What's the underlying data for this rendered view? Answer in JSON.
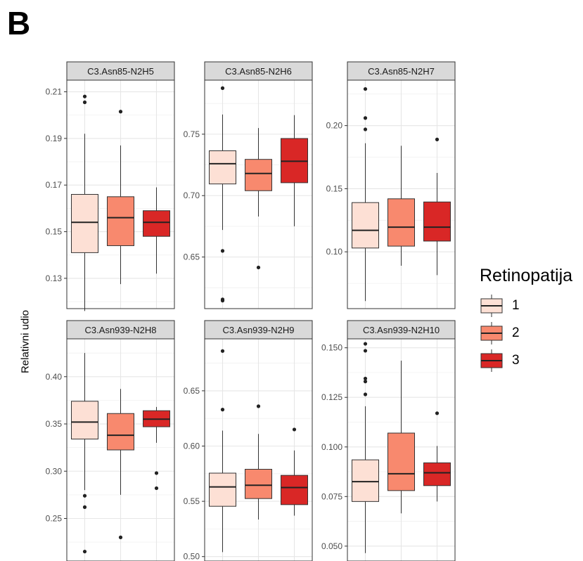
{
  "figure": {
    "panel_letter": "B",
    "ylabel": "Relativni udio",
    "legend_title": "Retinopatija",
    "groups": [
      "1",
      "2",
      "3"
    ],
    "colors": {
      "1": "#FDE0D5",
      "2": "#F8896E",
      "3": "#D92726"
    }
  },
  "chart_data": [
    {
      "type": "box",
      "title": "C3.Asn85-N2H5",
      "ylim": [
        0.117,
        0.215
      ],
      "yticks": [
        "0.13",
        "0.15",
        "0.17",
        "0.19",
        "0.21"
      ],
      "series": [
        {
          "name": "1",
          "q1": 0.141,
          "median": 0.154,
          "q3": 0.166,
          "whisker_low": 0.116,
          "whisker_high": 0.192,
          "outliers": [
            0.208,
            0.2055
          ]
        },
        {
          "name": "2",
          "q1": 0.144,
          "median": 0.156,
          "q3": 0.165,
          "whisker_low": 0.1275,
          "whisker_high": 0.187,
          "outliers": [
            0.2015
          ]
        },
        {
          "name": "3",
          "q1": 0.148,
          "median": 0.154,
          "q3": 0.159,
          "whisker_low": 0.132,
          "whisker_high": 0.169,
          "outliers": []
        }
      ]
    },
    {
      "type": "box",
      "title": "C3.Asn85-N2H6",
      "ylim": [
        0.608,
        0.794
      ],
      "yticks": [
        "0.65",
        "0.70",
        "0.75"
      ],
      "series": [
        {
          "name": "1",
          "q1": 0.7095,
          "median": 0.726,
          "q3": 0.7365,
          "whisker_low": 0.672,
          "whisker_high": 0.766,
          "outliers": [
            0.7875,
            0.655,
            0.6155,
            0.6145
          ]
        },
        {
          "name": "2",
          "q1": 0.704,
          "median": 0.718,
          "q3": 0.7295,
          "whisker_low": 0.683,
          "whisker_high": 0.755,
          "outliers": [
            0.6415
          ]
        },
        {
          "name": "3",
          "q1": 0.7105,
          "median": 0.728,
          "q3": 0.7465,
          "whisker_low": 0.675,
          "whisker_high": 0.7655,
          "outliers": []
        }
      ]
    },
    {
      "type": "box",
      "title": "C3.Asn85-N2H7",
      "ylim": [
        0.055,
        0.236
      ],
      "yticks": [
        "0.10",
        "0.15",
        "0.20"
      ],
      "series": [
        {
          "name": "1",
          "q1": 0.103,
          "median": 0.117,
          "q3": 0.139,
          "whisker_low": 0.061,
          "whisker_high": 0.186,
          "outliers": [
            0.229,
            0.206,
            0.197
          ]
        },
        {
          "name": "2",
          "q1": 0.1045,
          "median": 0.1195,
          "q3": 0.142,
          "whisker_low": 0.089,
          "whisker_high": 0.184,
          "outliers": []
        },
        {
          "name": "3",
          "q1": 0.1085,
          "median": 0.1195,
          "q3": 0.1395,
          "whisker_low": 0.0815,
          "whisker_high": 0.1625,
          "outliers": [
            0.189
          ]
        }
      ]
    },
    {
      "type": "box",
      "title": "C3.Asn939-N2H8",
      "ylim": [
        0.205,
        0.44
      ],
      "yticks": [
        "0.25",
        "0.30",
        "0.35",
        "0.40"
      ],
      "series": [
        {
          "name": "1",
          "q1": 0.334,
          "median": 0.352,
          "q3": 0.374,
          "whisker_low": 0.28,
          "whisker_high": 0.425,
          "outliers": [
            0.274,
            0.262,
            0.215
          ]
        },
        {
          "name": "2",
          "q1": 0.3225,
          "median": 0.338,
          "q3": 0.361,
          "whisker_low": 0.275,
          "whisker_high": 0.387,
          "outliers": [
            0.23
          ]
        },
        {
          "name": "3",
          "q1": 0.347,
          "median": 0.355,
          "q3": 0.364,
          "whisker_low": 0.33,
          "whisker_high": 0.368,
          "outliers": [
            0.298,
            0.282
          ]
        }
      ]
    },
    {
      "type": "box",
      "title": "C3.Asn939-N2H9",
      "ylim": [
        0.496,
        0.697
      ],
      "yticks": [
        "0.50",
        "0.55",
        "0.60",
        "0.65"
      ],
      "series": [
        {
          "name": "1",
          "q1": 0.5455,
          "median": 0.563,
          "q3": 0.5755,
          "whisker_low": 0.504,
          "whisker_high": 0.614,
          "outliers": [
            0.686,
            0.633
          ]
        },
        {
          "name": "2",
          "q1": 0.5525,
          "median": 0.5645,
          "q3": 0.579,
          "whisker_low": 0.5335,
          "whisker_high": 0.611,
          "outliers": [
            0.636
          ]
        },
        {
          "name": "3",
          "q1": 0.547,
          "median": 0.5625,
          "q3": 0.5735,
          "whisker_low": 0.537,
          "whisker_high": 0.596,
          "outliers": [
            0.615
          ]
        }
      ]
    },
    {
      "type": "box",
      "title": "C3.Asn939-N2H10",
      "ylim": [
        0.0425,
        0.1545
      ],
      "yticks": [
        "0.050",
        "0.075",
        "0.100",
        "0.125",
        "0.150"
      ],
      "series": [
        {
          "name": "1",
          "q1": 0.0725,
          "median": 0.0825,
          "q3": 0.0935,
          "whisker_low": 0.0465,
          "whisker_high": 0.1205,
          "outliers": [
            0.152,
            0.1485,
            0.1345,
            0.133,
            0.1265
          ]
        },
        {
          "name": "2",
          "q1": 0.078,
          "median": 0.0865,
          "q3": 0.107,
          "whisker_low": 0.0665,
          "whisker_high": 0.1435,
          "outliers": []
        },
        {
          "name": "3",
          "q1": 0.0805,
          "median": 0.087,
          "q3": 0.092,
          "whisker_low": 0.0725,
          "whisker_high": 0.1005,
          "outliers": [
            0.117
          ]
        }
      ]
    }
  ]
}
